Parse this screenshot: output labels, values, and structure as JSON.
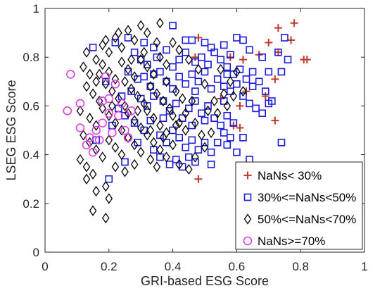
{
  "chart_data": {
    "type": "scatter",
    "xlabel": "GRI-based ESG Score",
    "ylabel": "LSEG ESG Score",
    "xlim": [
      0,
      1
    ],
    "ylim": [
      0,
      1
    ],
    "xticks": [
      "0",
      "0.2",
      "0.4",
      "0.6",
      "0.8",
      "1"
    ],
    "yticks": [
      "0",
      "0.2",
      "0.4",
      "0.6",
      "0.8",
      "1"
    ],
    "grid": false,
    "legend_position": "bottom-right",
    "series": [
      {
        "name": "NaNs< 30%",
        "marker": "plus",
        "color": "#c0392b",
        "points": [
          [
            0.48,
            0.88
          ],
          [
            0.47,
            0.8
          ],
          [
            0.78,
            0.94
          ],
          [
            0.73,
            0.92
          ],
          [
            0.7,
            0.86
          ],
          [
            0.77,
            0.87
          ],
          [
            0.73,
            0.82
          ],
          [
            0.67,
            0.81
          ],
          [
            0.62,
            0.79
          ],
          [
            0.81,
            0.79
          ],
          [
            0.82,
            0.79
          ],
          [
            0.72,
            0.71
          ],
          [
            0.69,
            0.64
          ],
          [
            0.63,
            0.66
          ],
          [
            0.61,
            0.6
          ],
          [
            0.59,
            0.52
          ],
          [
            0.61,
            0.51
          ],
          [
            0.55,
            0.63
          ],
          [
            0.48,
            0.3
          ],
          [
            0.72,
            0.54
          ],
          [
            0.58,
            0.8
          ]
        ]
      },
      {
        "name": "30%<=NaNs<50%",
        "marker": "square",
        "color": "#1a1adb",
        "points": [
          [
            0.15,
            0.84
          ],
          [
            0.22,
            0.86
          ],
          [
            0.26,
            0.88
          ],
          [
            0.31,
            0.86
          ],
          [
            0.34,
            0.84
          ],
          [
            0.4,
            0.93
          ],
          [
            0.44,
            0.87
          ],
          [
            0.46,
            0.87
          ],
          [
            0.5,
            0.86
          ],
          [
            0.52,
            0.84
          ],
          [
            0.56,
            0.85
          ],
          [
            0.58,
            0.81
          ],
          [
            0.6,
            0.88
          ],
          [
            0.62,
            0.87
          ],
          [
            0.64,
            0.83
          ],
          [
            0.68,
            0.8
          ],
          [
            0.7,
            0.74
          ],
          [
            0.73,
            0.82
          ],
          [
            0.75,
            0.88
          ],
          [
            0.76,
            0.79
          ],
          [
            0.74,
            0.74
          ],
          [
            0.28,
            0.82
          ],
          [
            0.3,
            0.79
          ],
          [
            0.32,
            0.77
          ],
          [
            0.35,
            0.8
          ],
          [
            0.38,
            0.83
          ],
          [
            0.42,
            0.79
          ],
          [
            0.44,
            0.82
          ],
          [
            0.47,
            0.78
          ],
          [
            0.49,
            0.8
          ],
          [
            0.51,
            0.77
          ],
          [
            0.53,
            0.82
          ],
          [
            0.55,
            0.79
          ],
          [
            0.57,
            0.76
          ],
          [
            0.59,
            0.73
          ],
          [
            0.61,
            0.75
          ],
          [
            0.63,
            0.71
          ],
          [
            0.65,
            0.68
          ],
          [
            0.67,
            0.7
          ],
          [
            0.69,
            0.66
          ],
          [
            0.71,
            0.62
          ],
          [
            0.26,
            0.74
          ],
          [
            0.29,
            0.71
          ],
          [
            0.31,
            0.72
          ],
          [
            0.33,
            0.68
          ],
          [
            0.36,
            0.74
          ],
          [
            0.38,
            0.7
          ],
          [
            0.4,
            0.76
          ],
          [
            0.42,
            0.72
          ],
          [
            0.44,
            0.69
          ],
          [
            0.46,
            0.73
          ],
          [
            0.48,
            0.7
          ],
          [
            0.5,
            0.74
          ],
          [
            0.52,
            0.67
          ],
          [
            0.54,
            0.71
          ],
          [
            0.56,
            0.68
          ],
          [
            0.58,
            0.66
          ],
          [
            0.6,
            0.69
          ],
          [
            0.62,
            0.64
          ],
          [
            0.64,
            0.61
          ],
          [
            0.66,
            0.59
          ],
          [
            0.68,
            0.57
          ],
          [
            0.7,
            0.61
          ],
          [
            0.27,
            0.66
          ],
          [
            0.3,
            0.63
          ],
          [
            0.32,
            0.6
          ],
          [
            0.34,
            0.64
          ],
          [
            0.37,
            0.62
          ],
          [
            0.39,
            0.58
          ],
          [
            0.41,
            0.61
          ],
          [
            0.43,
            0.55
          ],
          [
            0.45,
            0.59
          ],
          [
            0.47,
            0.62
          ],
          [
            0.49,
            0.57
          ],
          [
            0.51,
            0.6
          ],
          [
            0.53,
            0.55
          ],
          [
            0.55,
            0.52
          ],
          [
            0.57,
            0.56
          ],
          [
            0.59,
            0.53
          ],
          [
            0.23,
            0.59
          ],
          [
            0.25,
            0.56
          ],
          [
            0.28,
            0.53
          ],
          [
            0.31,
            0.5
          ],
          [
            0.33,
            0.54
          ],
          [
            0.36,
            0.48
          ],
          [
            0.38,
            0.45
          ],
          [
            0.4,
            0.5
          ],
          [
            0.42,
            0.47
          ],
          [
            0.44,
            0.43
          ],
          [
            0.46,
            0.46
          ],
          [
            0.48,
            0.42
          ],
          [
            0.5,
            0.45
          ],
          [
            0.52,
            0.41
          ],
          [
            0.54,
            0.45
          ],
          [
            0.56,
            0.49
          ],
          [
            0.58,
            0.47
          ],
          [
            0.34,
            0.42
          ],
          [
            0.36,
            0.39
          ],
          [
            0.39,
            0.36
          ],
          [
            0.41,
            0.38
          ],
          [
            0.43,
            0.35
          ],
          [
            0.45,
            0.39
          ],
          [
            0.47,
            0.37
          ],
          [
            0.2,
            0.3
          ],
          [
            0.25,
            0.37
          ],
          [
            0.16,
            0.46
          ],
          [
            0.52,
            0.36
          ],
          [
            0.57,
            0.44
          ],
          [
            0.6,
            0.41
          ],
          [
            0.62,
            0.47
          ],
          [
            0.64,
            0.38
          ],
          [
            0.74,
            0.45
          ],
          [
            0.37,
            0.55
          ],
          [
            0.29,
            0.45
          ],
          [
            0.21,
            0.52
          ],
          [
            0.24,
            0.64
          ],
          [
            0.19,
            0.7
          ],
          [
            0.56,
            0.62
          ],
          [
            0.5,
            0.54
          ],
          [
            0.46,
            0.52
          ],
          [
            0.4,
            0.67
          ],
          [
            0.34,
            0.73
          ],
          [
            0.47,
            0.66
          ],
          [
            0.57,
            0.73
          ],
          [
            0.65,
            0.74
          ]
        ]
      },
      {
        "name": "50%<=NaNs<70%",
        "marker": "diamond",
        "color": "#000000",
        "points": [
          [
            0.13,
            0.82
          ],
          [
            0.16,
            0.79
          ],
          [
            0.18,
            0.85
          ],
          [
            0.2,
            0.82
          ],
          [
            0.22,
            0.88
          ],
          [
            0.24,
            0.84
          ],
          [
            0.26,
            0.91
          ],
          [
            0.28,
            0.87
          ],
          [
            0.3,
            0.93
          ],
          [
            0.32,
            0.9
          ],
          [
            0.36,
            0.94
          ],
          [
            0.12,
            0.76
          ],
          [
            0.14,
            0.73
          ],
          [
            0.16,
            0.7
          ],
          [
            0.18,
            0.77
          ],
          [
            0.2,
            0.74
          ],
          [
            0.22,
            0.71
          ],
          [
            0.24,
            0.78
          ],
          [
            0.26,
            0.75
          ],
          [
            0.28,
            0.72
          ],
          [
            0.3,
            0.79
          ],
          [
            0.32,
            0.76
          ],
          [
            0.34,
            0.73
          ],
          [
            0.36,
            0.8
          ],
          [
            0.38,
            0.77
          ],
          [
            0.13,
            0.68
          ],
          [
            0.15,
            0.65
          ],
          [
            0.17,
            0.62
          ],
          [
            0.19,
            0.69
          ],
          [
            0.21,
            0.66
          ],
          [
            0.23,
            0.63
          ],
          [
            0.25,
            0.6
          ],
          [
            0.27,
            0.67
          ],
          [
            0.29,
            0.64
          ],
          [
            0.31,
            0.61
          ],
          [
            0.33,
            0.68
          ],
          [
            0.35,
            0.65
          ],
          [
            0.37,
            0.62
          ],
          [
            0.39,
            0.59
          ],
          [
            0.41,
            0.66
          ],
          [
            0.43,
            0.63
          ],
          [
            0.11,
            0.58
          ],
          [
            0.14,
            0.55
          ],
          [
            0.16,
            0.52
          ],
          [
            0.18,
            0.59
          ],
          [
            0.2,
            0.56
          ],
          [
            0.22,
            0.53
          ],
          [
            0.24,
            0.5
          ],
          [
            0.26,
            0.57
          ],
          [
            0.28,
            0.54
          ],
          [
            0.3,
            0.51
          ],
          [
            0.32,
            0.58
          ],
          [
            0.34,
            0.55
          ],
          [
            0.36,
            0.52
          ],
          [
            0.38,
            0.49
          ],
          [
            0.4,
            0.56
          ],
          [
            0.42,
            0.53
          ],
          [
            0.44,
            0.5
          ],
          [
            0.12,
            0.48
          ],
          [
            0.14,
            0.45
          ],
          [
            0.16,
            0.42
          ],
          [
            0.18,
            0.39
          ],
          [
            0.2,
            0.46
          ],
          [
            0.22,
            0.43
          ],
          [
            0.24,
            0.4
          ],
          [
            0.26,
            0.47
          ],
          [
            0.28,
            0.44
          ],
          [
            0.3,
            0.41
          ],
          [
            0.32,
            0.48
          ],
          [
            0.34,
            0.45
          ],
          [
            0.36,
            0.42
          ],
          [
            0.38,
            0.39
          ],
          [
            0.4,
            0.44
          ],
          [
            0.11,
            0.38
          ],
          [
            0.13,
            0.35
          ],
          [
            0.15,
            0.32
          ],
          [
            0.13,
            0.3
          ],
          [
            0.16,
            0.25
          ],
          [
            0.19,
            0.27
          ],
          [
            0.2,
            0.22
          ],
          [
            0.15,
            0.17
          ],
          [
            0.19,
            0.14
          ],
          [
            0.22,
            0.35
          ],
          [
            0.25,
            0.33
          ],
          [
            0.28,
            0.36
          ],
          [
            0.33,
            0.38
          ],
          [
            0.35,
            0.35
          ],
          [
            0.42,
            0.36
          ],
          [
            0.45,
            0.34
          ],
          [
            0.47,
            0.39
          ],
          [
            0.5,
            0.43
          ],
          [
            0.52,
            0.49
          ],
          [
            0.54,
            0.57
          ],
          [
            0.56,
            0.65
          ],
          [
            0.58,
            0.7
          ],
          [
            0.6,
            0.74
          ],
          [
            0.62,
            0.66
          ],
          [
            0.46,
            0.62
          ],
          [
            0.48,
            0.75
          ],
          [
            0.5,
            0.69
          ],
          [
            0.53,
            0.62
          ],
          [
            0.55,
            0.75
          ],
          [
            0.45,
            0.79
          ],
          [
            0.42,
            0.83
          ],
          [
            0.4,
            0.86
          ],
          [
            0.38,
            0.7
          ],
          [
            0.35,
            0.86
          ],
          [
            0.31,
            0.82
          ],
          [
            0.27,
            0.79
          ],
          [
            0.23,
            0.9
          ],
          [
            0.19,
            0.87
          ],
          [
            0.17,
            0.73
          ],
          [
            0.21,
            0.6
          ],
          [
            0.25,
            0.7
          ],
          [
            0.29,
            0.58
          ],
          [
            0.33,
            0.5
          ],
          [
            0.37,
            0.47
          ],
          [
            0.41,
            0.52
          ],
          [
            0.44,
            0.57
          ],
          [
            0.47,
            0.53
          ],
          [
            0.49,
            0.48
          ],
          [
            0.51,
            0.58
          ],
          [
            0.57,
            0.6
          ],
          [
            0.59,
            0.64
          ]
        ]
      },
      {
        "name": "NaNs>=70%",
        "marker": "circle",
        "color": "#e040e0",
        "points": [
          [
            0.08,
            0.73
          ],
          [
            0.07,
            0.58
          ],
          [
            0.11,
            0.61
          ],
          [
            0.11,
            0.51
          ],
          [
            0.14,
            0.47
          ],
          [
            0.16,
            0.5
          ],
          [
            0.18,
            0.53
          ],
          [
            0.2,
            0.57
          ],
          [
            0.19,
            0.72
          ],
          [
            0.2,
            0.63
          ],
          [
            0.22,
            0.69
          ],
          [
            0.24,
            0.61
          ],
          [
            0.23,
            0.56
          ],
          [
            0.13,
            0.44
          ],
          [
            0.15,
            0.41
          ],
          [
            0.17,
            0.46
          ],
          [
            0.25,
            0.5
          ],
          [
            0.27,
            0.58
          ],
          [
            0.26,
            0.47
          ],
          [
            0.21,
            0.49
          ],
          [
            0.18,
            0.62
          ]
        ]
      }
    ]
  }
}
